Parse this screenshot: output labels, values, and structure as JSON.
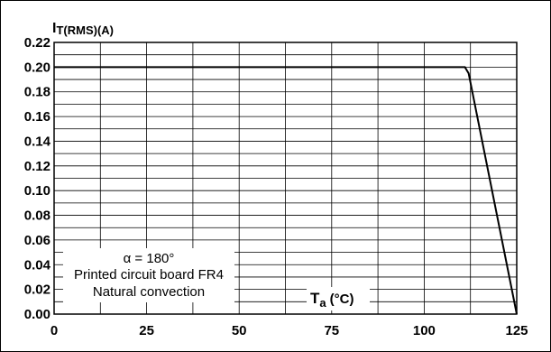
{
  "chart_data": {
    "type": "line",
    "ylabel_main": "I",
    "ylabel_sub": "T(RMS)",
    "ylabel_unit": "(A)",
    "xlabel_main": "T",
    "xlabel_sub": "a",
    "xlabel_unit": "(°C)",
    "xlim": [
      0,
      125
    ],
    "ylim": [
      0,
      0.22
    ],
    "x_ticks": [
      "0",
      "25",
      "50",
      "75",
      "100",
      "125"
    ],
    "y_ticks": [
      "0.00",
      "0.02",
      "0.04",
      "0.06",
      "0.08",
      "0.10",
      "0.12",
      "0.14",
      "0.16",
      "0.18",
      "0.20",
      "0.22"
    ],
    "grid": true,
    "annotation_lines": [
      "α = 180°",
      "Printed circuit board FR4",
      "Natural convection"
    ],
    "series": [
      {
        "x": [
          0,
          111,
          112,
          125
        ],
        "y": [
          0.2,
          0.2,
          0.195,
          0.0
        ]
      }
    ]
  }
}
